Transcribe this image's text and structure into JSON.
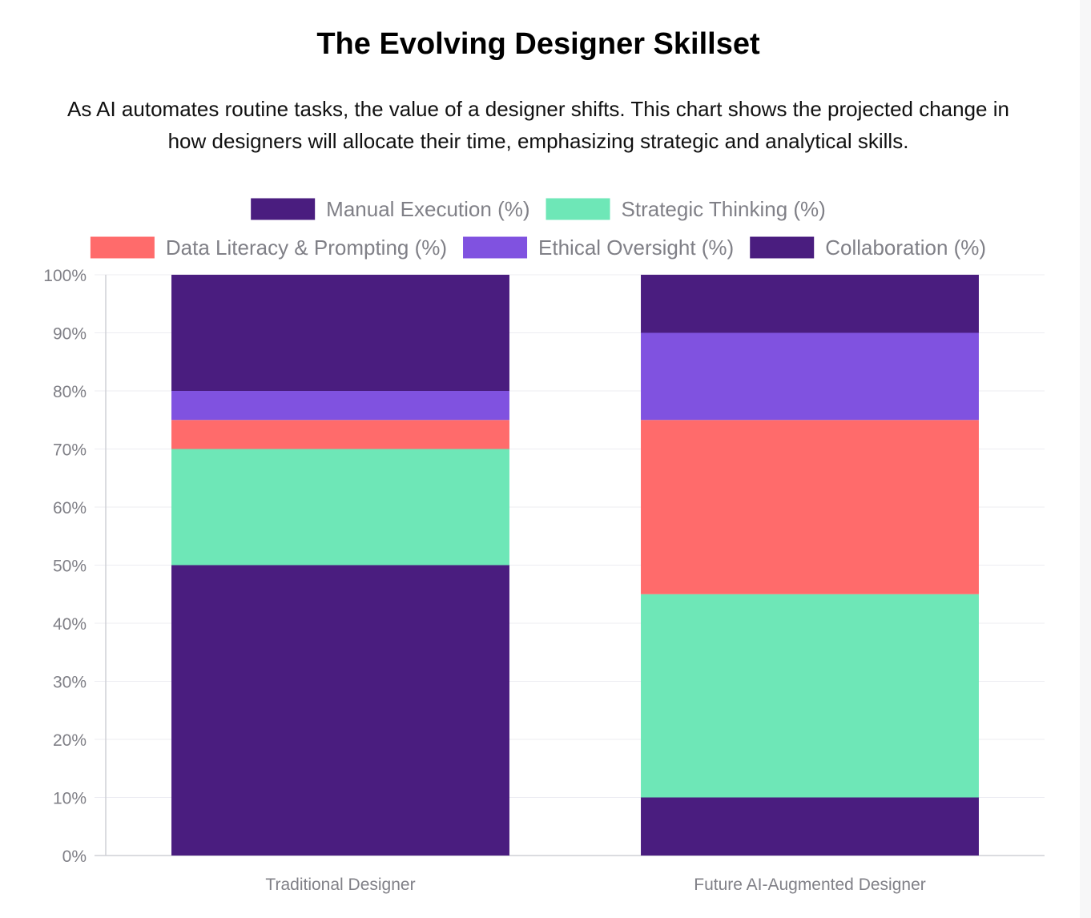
{
  "header": {
    "title": "The Evolving Designer Skillset",
    "subtitle": "As AI automates routine tasks, the value of a designer shifts. This chart shows the projected change in how designers will allocate their time, emphasizing strategic and analytical skills."
  },
  "chart_data": {
    "type": "bar",
    "stacked": true,
    "categories": [
      "Traditional Designer",
      "Future AI-Augmented Designer"
    ],
    "series": [
      {
        "name": "Manual Execution (%)",
        "values": [
          50,
          10
        ],
        "color": "#4a1d7f"
      },
      {
        "name": "Strategic Thinking (%)",
        "values": [
          20,
          35
        ],
        "color": "#6ee7b7"
      },
      {
        "name": "Data Literacy & Prompting (%)",
        "values": [
          5,
          30
        ],
        "color": "#ff6b6b"
      },
      {
        "name": "Ethical Oversight (%)",
        "values": [
          5,
          15
        ],
        "color": "#8052e0"
      },
      {
        "name": "Collaboration (%)",
        "values": [
          20,
          10
        ],
        "color": "#4a1d7f"
      }
    ],
    "ylim": [
      0,
      100
    ],
    "yticks": [
      "0%",
      "10%",
      "20%",
      "30%",
      "40%",
      "50%",
      "60%",
      "70%",
      "80%",
      "90%",
      "100%"
    ],
    "grid": true,
    "legend": "top"
  }
}
